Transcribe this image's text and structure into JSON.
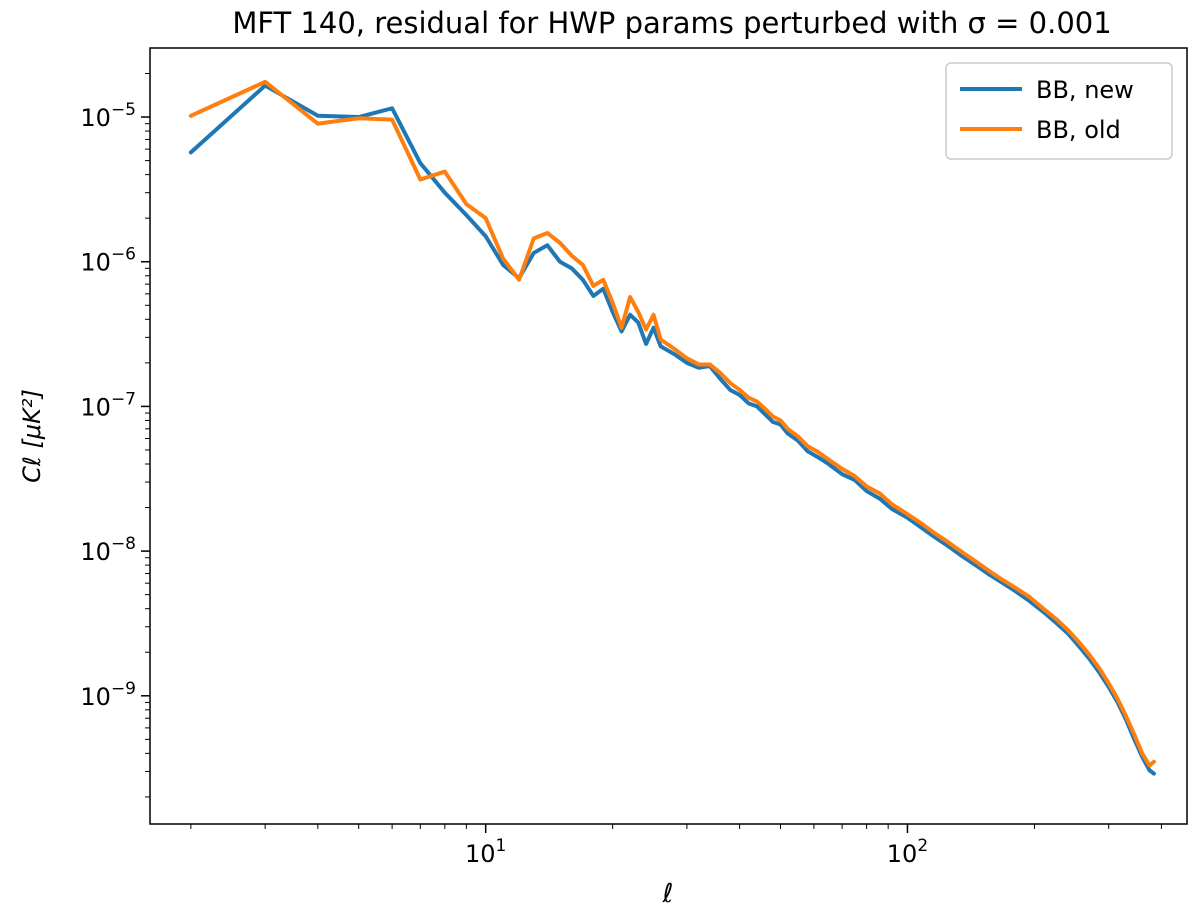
{
  "chart_data": {
    "type": "line",
    "title": "MFT 140, residual for HWP params perturbed with σ = 0.001",
    "xlabel": "ℓ",
    "ylabel": "Cℓ [μK²]",
    "xscale": "log",
    "yscale": "log",
    "xlim": [
      1.6,
      460
    ],
    "ylim": [
      1.3e-10,
      3e-05
    ],
    "x_ticks": [
      {
        "value": 10,
        "base": "10",
        "exp": "1"
      },
      {
        "value": 100,
        "base": "10",
        "exp": "2"
      }
    ],
    "y_ticks": [
      {
        "value": 1e-05,
        "base": "10",
        "exp": "−5"
      },
      {
        "value": 1e-06,
        "base": "10",
        "exp": "−6"
      },
      {
        "value": 1e-07,
        "base": "10",
        "exp": "−7"
      },
      {
        "value": 1e-08,
        "base": "10",
        "exp": "−8"
      },
      {
        "value": 1e-09,
        "base": "10",
        "exp": "−9"
      }
    ],
    "legend_position": "top-right",
    "series": [
      {
        "name": "BB, new",
        "color": "#1f77b4",
        "points": [
          [
            2,
            5.7e-06
          ],
          [
            3,
            1.65e-05
          ],
          [
            4,
            1.02e-05
          ],
          [
            5,
            1e-05
          ],
          [
            6,
            1.15e-05
          ],
          [
            7,
            4.8e-06
          ],
          [
            8,
            3e-06
          ],
          [
            9,
            2.1e-06
          ],
          [
            10,
            1.5e-06
          ],
          [
            11,
            9.5e-07
          ],
          [
            12,
            7.7e-07
          ],
          [
            13,
            1.15e-06
          ],
          [
            14,
            1.3e-06
          ],
          [
            15,
            1e-06
          ],
          [
            16,
            9e-07
          ],
          [
            17,
            7.5e-07
          ],
          [
            18,
            5.8e-07
          ],
          [
            19,
            6.5e-07
          ],
          [
            20,
            4.5e-07
          ],
          [
            21,
            3.3e-07
          ],
          [
            22,
            4.3e-07
          ],
          [
            23,
            3.8e-07
          ],
          [
            24,
            2.7e-07
          ],
          [
            25,
            3.5e-07
          ],
          [
            26,
            2.6e-07
          ],
          [
            28,
            2.3e-07
          ],
          [
            30,
            2e-07
          ],
          [
            32,
            1.85e-07
          ],
          [
            34,
            1.9e-07
          ],
          [
            36,
            1.55e-07
          ],
          [
            38,
            1.3e-07
          ],
          [
            40,
            1.2e-07
          ],
          [
            42,
            1.05e-07
          ],
          [
            44,
            1e-07
          ],
          [
            46,
            8.8e-08
          ],
          [
            48,
            7.8e-08
          ],
          [
            50,
            7.5e-08
          ],
          [
            52,
            6.5e-08
          ],
          [
            55,
            5.8e-08
          ],
          [
            58,
            4.9e-08
          ],
          [
            61,
            4.5e-08
          ],
          [
            65,
            4e-08
          ],
          [
            70,
            3.4e-08
          ],
          [
            75,
            3.1e-08
          ],
          [
            80,
            2.6e-08
          ],
          [
            86,
            2.3e-08
          ],
          [
            92,
            1.95e-08
          ],
          [
            100,
            1.7e-08
          ],
          [
            108,
            1.45e-08
          ],
          [
            116,
            1.25e-08
          ],
          [
            125,
            1.08e-08
          ],
          [
            135,
            9.2e-09
          ],
          [
            145,
            8e-09
          ],
          [
            155,
            7e-09
          ],
          [
            167,
            6.1e-09
          ],
          [
            180,
            5.3e-09
          ],
          [
            195,
            4.5e-09
          ],
          [
            210,
            3.8e-09
          ],
          [
            225,
            3.2e-09
          ],
          [
            240,
            2.7e-09
          ],
          [
            255,
            2.2e-09
          ],
          [
            270,
            1.8e-09
          ],
          [
            285,
            1.45e-09
          ],
          [
            300,
            1.15e-09
          ],
          [
            315,
            9e-10
          ],
          [
            330,
            6.8e-10
          ],
          [
            345,
            5e-10
          ],
          [
            360,
            3.8e-10
          ],
          [
            375,
            3.05e-10
          ],
          [
            384,
            2.9e-10
          ]
        ]
      },
      {
        "name": "BB, old",
        "color": "#ff7f0e",
        "points": [
          [
            2,
            1.02e-05
          ],
          [
            3,
            1.75e-05
          ],
          [
            4,
            9e-06
          ],
          [
            5,
            9.8e-06
          ],
          [
            6,
            9.6e-06
          ],
          [
            7,
            3.7e-06
          ],
          [
            8,
            4.2e-06
          ],
          [
            9,
            2.5e-06
          ],
          [
            10,
            2e-06
          ],
          [
            11,
            1.05e-06
          ],
          [
            12,
            7.5e-07
          ],
          [
            13,
            1.45e-06
          ],
          [
            14,
            1.58e-06
          ],
          [
            15,
            1.35e-06
          ],
          [
            16,
            1.1e-06
          ],
          [
            17,
            9.5e-07
          ],
          [
            18,
            6.8e-07
          ],
          [
            19,
            7.5e-07
          ],
          [
            20,
            5.2e-07
          ],
          [
            21,
            3.5e-07
          ],
          [
            22,
            5.7e-07
          ],
          [
            23,
            4.5e-07
          ],
          [
            24,
            3.4e-07
          ],
          [
            25,
            4.3e-07
          ],
          [
            26,
            2.9e-07
          ],
          [
            28,
            2.5e-07
          ],
          [
            30,
            2.15e-07
          ],
          [
            32,
            1.95e-07
          ],
          [
            34,
            1.95e-07
          ],
          [
            36,
            1.7e-07
          ],
          [
            38,
            1.45e-07
          ],
          [
            40,
            1.3e-07
          ],
          [
            42,
            1.15e-07
          ],
          [
            44,
            1.08e-07
          ],
          [
            46,
            9.6e-08
          ],
          [
            48,
            8.5e-08
          ],
          [
            50,
            8e-08
          ],
          [
            52,
            7e-08
          ],
          [
            55,
            6.2e-08
          ],
          [
            58,
            5.3e-08
          ],
          [
            61,
            4.9e-08
          ],
          [
            65,
            4.3e-08
          ],
          [
            70,
            3.7e-08
          ],
          [
            75,
            3.3e-08
          ],
          [
            80,
            2.8e-08
          ],
          [
            86,
            2.5e-08
          ],
          [
            92,
            2.1e-08
          ],
          [
            100,
            1.8e-08
          ],
          [
            108,
            1.55e-08
          ],
          [
            116,
            1.33e-08
          ],
          [
            125,
            1.15e-08
          ],
          [
            135,
            9.8e-09
          ],
          [
            145,
            8.5e-09
          ],
          [
            155,
            7.4e-09
          ],
          [
            167,
            6.4e-09
          ],
          [
            180,
            5.6e-09
          ],
          [
            195,
            4.8e-09
          ],
          [
            210,
            4e-09
          ],
          [
            225,
            3.4e-09
          ],
          [
            240,
            2.85e-09
          ],
          [
            255,
            2.35e-09
          ],
          [
            270,
            1.92e-09
          ],
          [
            285,
            1.55e-09
          ],
          [
            300,
            1.22e-09
          ],
          [
            315,
            9.5e-10
          ],
          [
            330,
            7.2e-10
          ],
          [
            345,
            5.4e-10
          ],
          [
            360,
            4e-10
          ],
          [
            375,
            3.3e-10
          ],
          [
            384,
            3.5e-10
          ]
        ]
      }
    ]
  }
}
